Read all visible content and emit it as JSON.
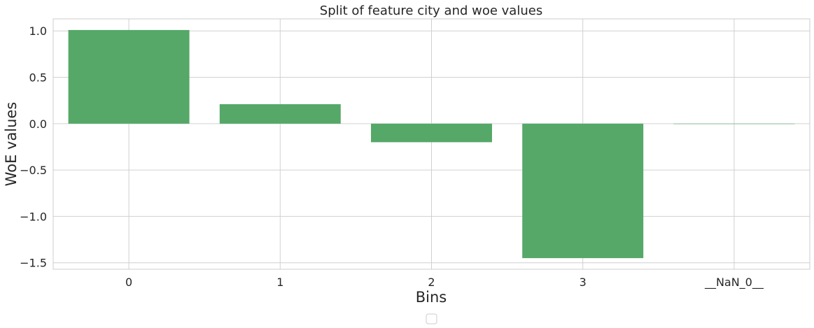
{
  "chart_data": {
    "type": "bar",
    "title": "Split of feature city and woe values",
    "xlabel": "Bins",
    "ylabel": "WoE values",
    "categories": [
      "0",
      "1",
      "2",
      "3",
      "__NaN_0__"
    ],
    "values": [
      1.01,
      0.21,
      -0.2,
      -1.45,
      0.0
    ],
    "ylim": [
      -1.57,
      1.13
    ],
    "yticks": [
      1.0,
      0.5,
      0.0,
      -0.5,
      -1.0,
      -1.5
    ],
    "ytick_labels": [
      "1.0",
      "0.5",
      "0.0",
      "−0.5",
      "−1.0",
      "−1.5"
    ],
    "grid": true,
    "legend": "bottom-center (empty)",
    "colors": {
      "bar": "#55a868",
      "grid": "#d0d0d0",
      "background": "#ffffff"
    }
  }
}
